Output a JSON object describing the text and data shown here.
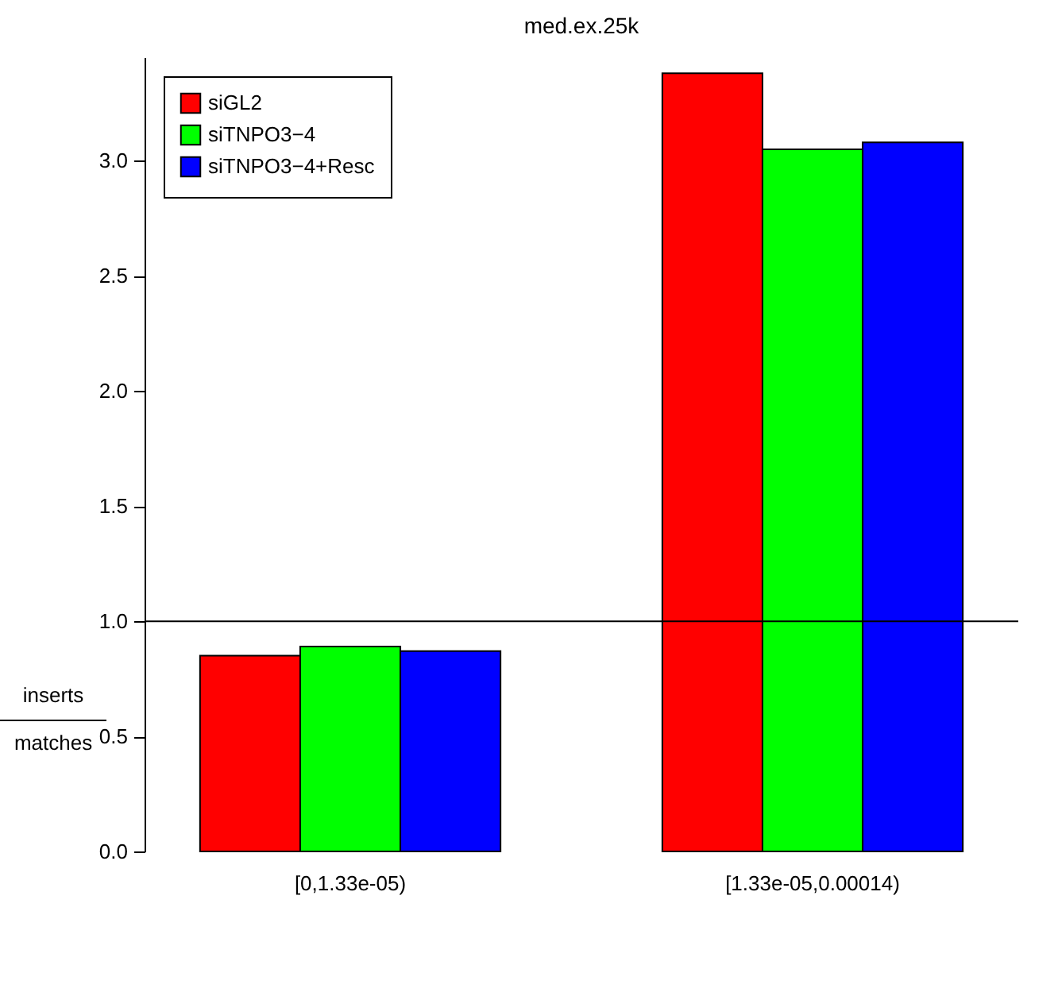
{
  "chart_data": {
    "type": "bar",
    "title": "med.ex.25k",
    "ylabel": "inserts\nmatches",
    "categories": [
      "[0,1.33e-05)",
      "[1.33e-05,0.00014)"
    ],
    "series": [
      {
        "name": "siGL2",
        "color": "#ff0000",
        "values": [
          0.85,
          3.38
        ]
      },
      {
        "name": "siTNPO3−4",
        "color": "#00ff00",
        "values": [
          0.89,
          3.05
        ]
      },
      {
        "name": "siTNPO3−4+Resc",
        "color": "#0000ff",
        "values": [
          0.87,
          3.08
        ]
      }
    ],
    "ylim": [
      0,
      3.45
    ],
    "yticks": [
      {
        "value": 0,
        "label": "0.0"
      },
      0.5,
      {
        "value": 1,
        "label": "1.0"
      },
      1.5,
      {
        "value": 2,
        "label": "2.0"
      },
      2.5,
      {
        "value": 3,
        "label": "3.0"
      }
    ],
    "grid": false,
    "legend": "top left",
    "ref_lines": [
      {
        "axis": "y",
        "value": 1.0,
        "color": "#000000"
      }
    ]
  }
}
